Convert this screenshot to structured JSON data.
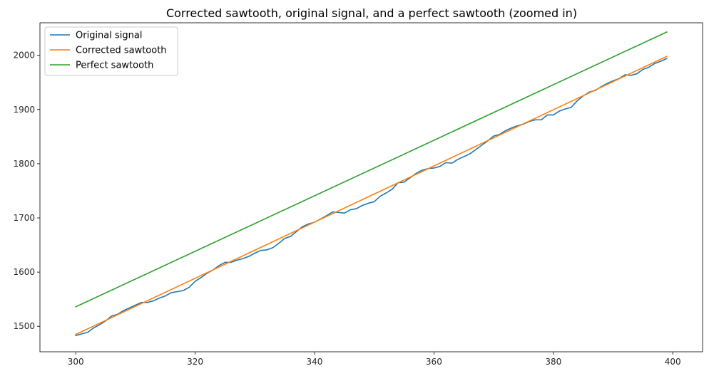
{
  "chart_data": {
    "type": "line",
    "title": "Corrected sawtooth, original signal, and a perfect sawtooth (zoomed in)",
    "xlabel": "",
    "ylabel": "",
    "xlim": [
      294,
      405
    ],
    "ylim": [
      1453,
      2060
    ],
    "x_ticks": [
      300,
      320,
      340,
      360,
      380,
      400
    ],
    "y_ticks": [
      1500,
      1600,
      1700,
      1800,
      1900,
      2000
    ],
    "grid": false,
    "legend_position": "top-left",
    "series": [
      {
        "name": "Original signal",
        "color": "#1f77b4",
        "x": [
          300,
          301,
          302,
          303,
          304,
          305,
          306,
          307,
          308,
          309,
          310,
          311,
          312,
          313,
          314,
          315,
          316,
          317,
          318,
          319,
          320,
          321,
          322,
          323,
          324,
          325,
          326,
          327,
          328,
          329,
          330,
          331,
          332,
          333,
          334,
          335,
          336,
          337,
          338,
          339,
          340,
          341,
          342,
          343,
          344,
          345,
          346,
          347,
          348,
          349,
          350,
          351,
          352,
          353,
          354,
          355,
          356,
          357,
          358,
          359,
          360,
          361,
          362,
          363,
          364,
          365,
          366,
          367,
          368,
          369,
          370,
          371,
          372,
          373,
          374,
          375,
          376,
          377,
          378,
          379,
          380,
          381,
          382,
          383,
          384,
          385,
          386,
          387,
          388,
          389,
          390,
          391,
          392,
          393,
          394,
          395,
          396,
          397,
          398,
          399
        ],
        "y": [
          1483,
          1486,
          1489,
          1497,
          1503,
          1510,
          1519,
          1522,
          1529,
          1534,
          1539,
          1544,
          1544,
          1547,
          1552,
          1556,
          1562,
          1564,
          1566,
          1572,
          1583,
          1590,
          1598,
          1604,
          1612,
          1618,
          1618,
          1622,
          1625,
          1629,
          1635,
          1640,
          1641,
          1645,
          1653,
          1662,
          1666,
          1675,
          1684,
          1689,
          1692,
          1698,
          1704,
          1711,
          1710,
          1709,
          1715,
          1717,
          1723,
          1727,
          1730,
          1740,
          1746,
          1753,
          1765,
          1766,
          1774,
          1782,
          1788,
          1791,
          1792,
          1795,
          1802,
          1801,
          1808,
          1813,
          1818,
          1826,
          1834,
          1842,
          1851,
          1854,
          1861,
          1866,
          1870,
          1873,
          1878,
          1881,
          1881,
          1890,
          1890,
          1897,
          1901,
          1904,
          1916,
          1925,
          1932,
          1935,
          1942,
          1948,
          1953,
          1957,
          1964,
          1963,
          1966,
          1974,
          1978,
          1985,
          1989,
          1994
        ]
      },
      {
        "name": "Corrected sawtooth",
        "color": "#ff7f0e",
        "x": [
          300,
          399
        ],
        "y": [
          1485,
          1998
        ]
      },
      {
        "name": "Perfect sawtooth",
        "color": "#2ca02c",
        "x": [
          300,
          399
        ],
        "y": [
          1536,
          2043
        ]
      }
    ]
  }
}
